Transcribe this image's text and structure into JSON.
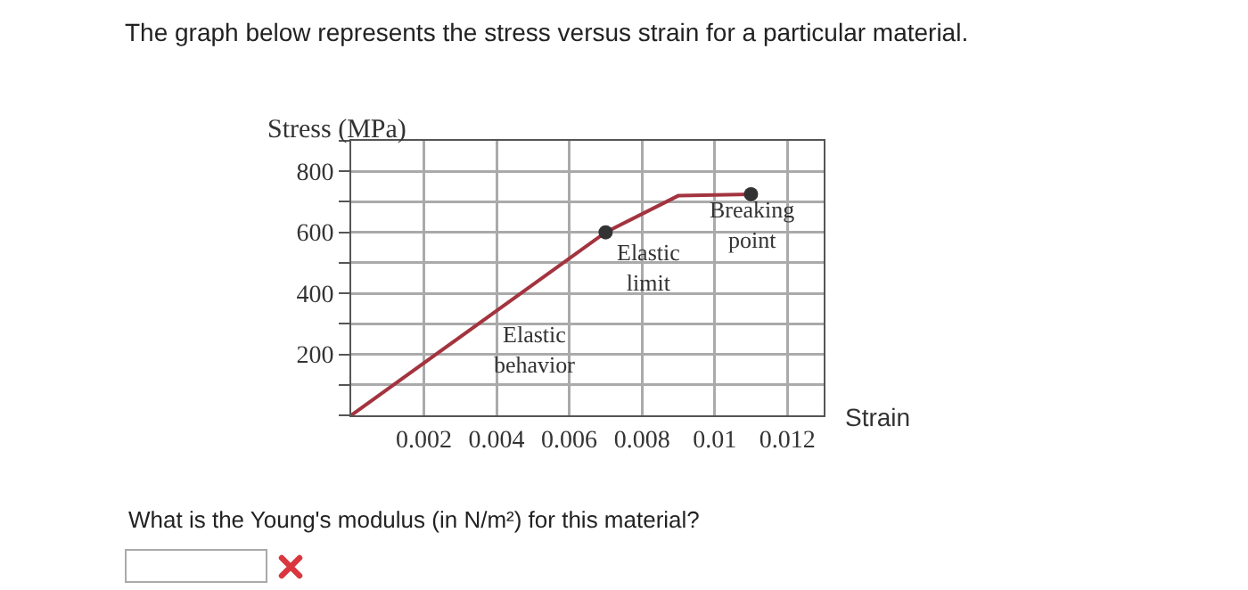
{
  "chart_data": {
    "type": "line",
    "title": "The graph below represents the stress versus strain for a particular material.",
    "ylabel": "Stress (MPa)",
    "xlabel": "Strain",
    "xlim": [
      0,
      0.013
    ],
    "xticks": [
      0.002,
      0.004,
      0.006,
      0.008,
      0.01,
      0.012
    ],
    "ylim": [
      0,
      900
    ],
    "yticks": [
      {
        "value": 0,
        "label": null
      },
      {
        "value": 100,
        "label": null
      },
      200,
      {
        "value": 300,
        "label": null
      },
      400,
      {
        "value": 500,
        "label": null
      },
      600,
      {
        "value": 700,
        "label": null
      },
      800,
      {
        "value": 900,
        "label": null
      }
    ],
    "grid": true,
    "line_style": "solid",
    "series": [
      {
        "type": "line",
        "color": "#a3343f",
        "x": [
          0,
          0.007,
          0.009,
          0.011
        ],
        "values": [
          0,
          600,
          720,
          725
        ],
        "marker": "none"
      },
      {
        "type": "scatter",
        "color": "#333333",
        "x": [
          0.007,
          0.011
        ],
        "values": [
          600,
          725
        ],
        "marker": "circle"
      }
    ],
    "annotations": [
      "Elastic behavior",
      "Elastic limit",
      "Breaking point",
      "What is the Young's modulus (in N/m²) for this material?"
    ]
  }
}
